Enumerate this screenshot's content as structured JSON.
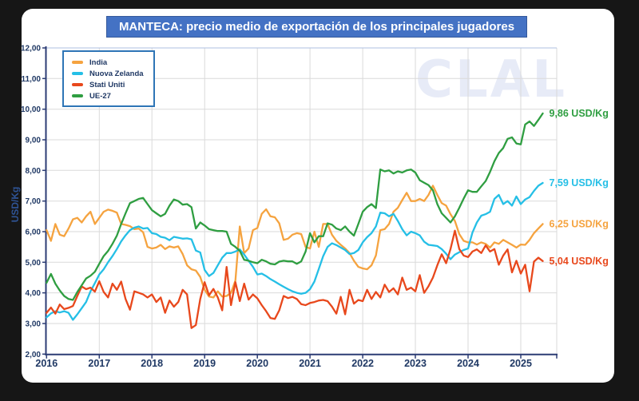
{
  "title": "MANTECA: precio medio de exportación de los principales jugadores",
  "watermark": "CLAL",
  "y_axis_title": "USD/Kg",
  "colors": {
    "title_bar": "#4472c4",
    "axis": "#2c3c74",
    "tick_text": "#1f3864",
    "grid": "#dadada",
    "legend_border": "#2e75b6",
    "panel_bg": "#ffffff",
    "frame_bg": "#161616"
  },
  "legend": {
    "items": [
      {
        "label": "India",
        "color": "#f5a33f"
      },
      {
        "label": "Nuova Zelanda",
        "color": "#25bfe6"
      },
      {
        "label": "Stati Uniti",
        "color": "#e8481c"
      },
      {
        "label": "UE-27",
        "color": "#2f9e41"
      }
    ]
  },
  "chart_data": {
    "type": "line",
    "title": "MANTECA: precio medio de exportación de los principales jugadores",
    "ylabel": "USD/Kg",
    "ylim": [
      2,
      12
    ],
    "grid": true,
    "legend_position": "top-left",
    "x_start": "2016-01",
    "x_end": "2025-06",
    "x_frequency": "monthly",
    "y_ticks": [
      12,
      11,
      10,
      9,
      8,
      7,
      6,
      5,
      4,
      3,
      2
    ],
    "y_tick_labels": [
      "12,00",
      "11,00",
      "10,00",
      "9,00",
      "8,00",
      "7,00",
      "6,00",
      "5,00",
      "4,00",
      "3,00",
      "2,00"
    ],
    "x_tick_labels": [
      "2016",
      "2017",
      "2018",
      "2019",
      "2020",
      "2021",
      "2022",
      "2023",
      "2024",
      "2025"
    ],
    "series": [
      {
        "name": "India",
        "color": "#f5a33f",
        "end_label": "6,25 USD/Kg",
        "values": [
          6.05,
          5.7,
          6.25,
          5.9,
          5.85,
          6.1,
          6.4,
          6.45,
          6.3,
          6.5,
          6.65,
          6.25,
          6.45,
          6.65,
          6.72,
          6.68,
          6.62,
          6.25,
          6.22,
          6.18,
          6.08,
          6.1,
          5.98,
          5.5,
          5.45,
          5.48,
          5.57,
          5.43,
          5.52,
          5.48,
          5.52,
          5.27,
          4.9,
          4.77,
          4.73,
          4.52,
          4.1,
          3.88,
          3.85,
          4.05,
          3.88,
          3.9,
          4.0,
          4.4,
          6.17,
          5.3,
          5.45,
          6.05,
          6.12,
          6.58,
          6.73,
          6.5,
          6.47,
          6.27,
          5.73,
          5.77,
          5.9,
          5.95,
          5.92,
          5.5,
          5.45,
          6.0,
          5.5,
          6.25,
          6.25,
          5.9,
          5.7,
          5.57,
          5.45,
          5.3,
          5.05,
          4.85,
          4.8,
          4.77,
          4.9,
          5.22,
          6.05,
          6.08,
          6.25,
          6.65,
          6.78,
          7.03,
          7.27,
          7.0,
          7.0,
          7.07,
          7.0,
          7.2,
          7.5,
          7.2,
          6.93,
          6.85,
          6.57,
          6.35,
          5.92,
          5.7,
          5.65,
          5.65,
          5.58,
          5.65,
          5.6,
          5.48,
          5.65,
          5.6,
          5.73,
          5.65,
          5.57,
          5.48,
          5.58,
          5.57,
          5.73,
          5.95,
          6.1,
          6.25
        ]
      },
      {
        "name": "Nuova Zelanda",
        "color": "#25bfe6",
        "end_label": "7,59 USD/Kg",
        "values": [
          3.2,
          3.33,
          3.4,
          3.36,
          3.4,
          3.35,
          3.12,
          3.3,
          3.5,
          3.7,
          4.05,
          4.32,
          4.6,
          4.77,
          5.0,
          5.2,
          5.43,
          5.68,
          5.88,
          6.05,
          6.13,
          6.17,
          6.1,
          6.12,
          5.95,
          5.92,
          5.83,
          5.8,
          5.72,
          5.83,
          5.8,
          5.77,
          5.78,
          5.75,
          5.38,
          5.32,
          4.75,
          4.55,
          4.65,
          4.9,
          5.15,
          5.3,
          5.3,
          5.35,
          5.42,
          5.25,
          5.05,
          4.85,
          4.6,
          4.63,
          4.55,
          4.45,
          4.37,
          4.28,
          4.2,
          4.12,
          4.05,
          4.0,
          3.97,
          4.0,
          4.12,
          4.37,
          4.78,
          5.2,
          5.5,
          5.62,
          5.56,
          5.48,
          5.4,
          5.27,
          5.3,
          5.4,
          5.65,
          5.82,
          5.95,
          6.17,
          6.62,
          6.6,
          6.5,
          6.58,
          6.35,
          6.08,
          5.88,
          6.0,
          5.95,
          5.88,
          5.67,
          5.57,
          5.55,
          5.53,
          5.43,
          5.28,
          5.1,
          5.25,
          5.33,
          5.4,
          5.45,
          5.97,
          6.3,
          6.52,
          6.57,
          6.65,
          7.07,
          7.2,
          6.9,
          7.0,
          6.85,
          7.15,
          6.9,
          7.05,
          7.13,
          7.33,
          7.5,
          7.59
        ]
      },
      {
        "name": "Stati Uniti",
        "color": "#e8481c",
        "end_label": "5,04 USD/Kg",
        "values": [
          3.35,
          3.52,
          3.32,
          3.62,
          3.47,
          3.51,
          3.57,
          3.9,
          4.21,
          4.12,
          4.17,
          4.04,
          4.38,
          4.03,
          3.85,
          4.3,
          4.1,
          4.37,
          3.8,
          3.45,
          4.05,
          4.0,
          3.95,
          3.85,
          3.95,
          3.7,
          3.85,
          3.35,
          3.75,
          3.55,
          3.7,
          4.1,
          3.95,
          2.85,
          2.95,
          3.8,
          4.35,
          3.92,
          4.13,
          3.85,
          3.43,
          4.85,
          3.6,
          4.35,
          3.73,
          4.3,
          3.78,
          3.95,
          3.82,
          3.6,
          3.4,
          3.18,
          3.15,
          3.43,
          3.9,
          3.83,
          3.87,
          3.8,
          3.63,
          3.6,
          3.67,
          3.7,
          3.75,
          3.77,
          3.73,
          3.55,
          3.32,
          3.87,
          3.3,
          4.1,
          3.65,
          3.77,
          3.73,
          4.1,
          3.8,
          4.03,
          3.85,
          4.27,
          4.03,
          4.15,
          3.95,
          4.5,
          4.1,
          4.17,
          4.05,
          4.58,
          4.0,
          4.22,
          4.5,
          4.9,
          5.26,
          4.97,
          5.43,
          6.03,
          5.43,
          5.22,
          5.17,
          5.35,
          5.42,
          5.3,
          5.55,
          5.35,
          5.43,
          4.92,
          5.22,
          5.42,
          4.67,
          5.05,
          4.63,
          4.92,
          4.05,
          5.02,
          5.15,
          5.04
        ]
      },
      {
        "name": "UE-27",
        "color": "#2f9e41",
        "end_label": "9,86 USD/Kg",
        "values": [
          4.33,
          4.62,
          4.3,
          4.08,
          3.9,
          3.8,
          3.77,
          4.03,
          4.25,
          4.47,
          4.56,
          4.69,
          4.95,
          5.2,
          5.37,
          5.6,
          5.87,
          6.25,
          6.6,
          6.93,
          7.0,
          7.07,
          7.1,
          6.9,
          6.7,
          6.6,
          6.5,
          6.58,
          6.85,
          7.05,
          7.0,
          6.88,
          6.9,
          6.8,
          6.1,
          6.3,
          6.2,
          6.08,
          6.05,
          6.02,
          6.02,
          6.0,
          5.6,
          5.5,
          5.37,
          5.08,
          5.05,
          5.0,
          4.97,
          5.08,
          5.03,
          4.95,
          4.93,
          5.02,
          5.05,
          5.03,
          5.03,
          4.95,
          5.03,
          5.35,
          5.95,
          5.65,
          5.85,
          5.85,
          6.27,
          6.23,
          6.1,
          6.05,
          6.17,
          6.0,
          5.87,
          6.25,
          6.65,
          6.8,
          6.9,
          6.77,
          8.03,
          7.97,
          8.0,
          7.9,
          7.97,
          7.93,
          8.0,
          8.03,
          7.93,
          7.68,
          7.6,
          7.52,
          7.35,
          6.9,
          6.6,
          6.45,
          6.3,
          6.5,
          6.78,
          7.08,
          7.35,
          7.3,
          7.3,
          7.48,
          7.65,
          7.95,
          8.3,
          8.57,
          8.73,
          9.03,
          9.08,
          8.88,
          8.85,
          9.5,
          9.6,
          9.45,
          9.65,
          9.86
        ]
      }
    ]
  }
}
